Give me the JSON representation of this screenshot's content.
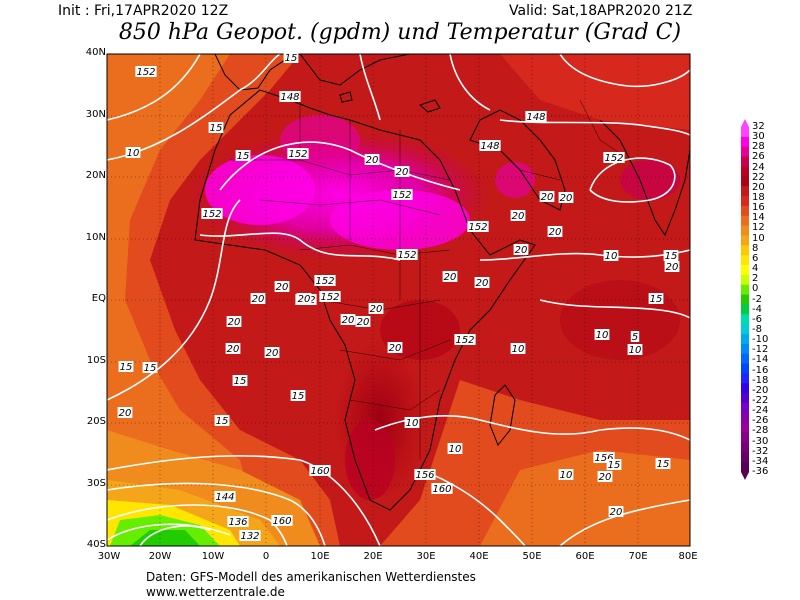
{
  "header": {
    "init": "Init : Fri,17APR2020 12Z",
    "valid": "Valid: Sat,18APR2020 21Z",
    "title": "850 hPa Geopot. (gpdm) und Temperatur (Grad C)"
  },
  "axes": {
    "lat_labels": [
      "40N",
      "30N",
      "20N",
      "10N",
      "EQ",
      "10S",
      "20S",
      "30S",
      "40S"
    ],
    "lon_labels": [
      "30W",
      "20W",
      "10W",
      "0",
      "10E",
      "20E",
      "30E",
      "40E",
      "50E",
      "60E",
      "70E",
      "80E"
    ]
  },
  "colorbar": {
    "labels": [
      "32",
      "30",
      "28",
      "26",
      "24",
      "22",
      "20",
      "18",
      "16",
      "14",
      "12",
      "10",
      "8",
      "6",
      "4",
      "2",
      "0",
      "-2",
      "-4",
      "-6",
      "-8",
      "-10",
      "-12",
      "-14",
      "-16",
      "-18",
      "-20",
      "-22",
      "-24",
      "-26",
      "-28",
      "-30",
      "-32",
      "-34",
      "-36"
    ],
    "colors": [
      "#ff44ff",
      "#ff00e6",
      "#e60099",
      "#c8004b",
      "#b90023",
      "#af0014",
      "#c31919",
      "#d7281e",
      "#e14b1e",
      "#eb6e1e",
      "#f08c1e",
      "#f5a519",
      "#ffc800",
      "#ffe600",
      "#ffff00",
      "#ccff00",
      "#66ee00",
      "#22cc00",
      "#00cc44",
      "#00ddaa",
      "#00ccdd",
      "#00aaee",
      "#0088ff",
      "#0066ff",
      "#0044ff",
      "#2222ff",
      "#3300ee",
      "#5500cc",
      "#7700cc",
      "#8800aa",
      "#990099",
      "#880088",
      "#770077",
      "#660066",
      "#550055"
    ]
  },
  "contour_labels": {
    "height": [
      "152",
      "148",
      "152",
      "152",
      "152",
      "152",
      "148",
      "152",
      "152",
      "152",
      "148",
      "144",
      "136",
      "132",
      "160",
      "156",
      "152",
      "160",
      "160",
      "156",
      "152",
      "152"
    ],
    "temp": [
      "15",
      "10",
      "15",
      "15",
      "20",
      "20",
      "20",
      "20",
      "20",
      "20",
      "20",
      "20",
      "20",
      "20",
      "20",
      "20",
      "20",
      "20",
      "20",
      "20",
      "15",
      "15",
      "15",
      "15",
      "20",
      "10",
      "10",
      "10",
      "5",
      "15",
      "10",
      "15",
      "20",
      "20",
      "20",
      "20",
      "15",
      "10",
      "10",
      "10",
      "15",
      "15",
      "20",
      "20"
    ]
  },
  "footer": {
    "line1": "Daten: GFS-Modell des amerikanischen Wetterdienstes",
    "line2": "www.wetterzentrale.de"
  }
}
